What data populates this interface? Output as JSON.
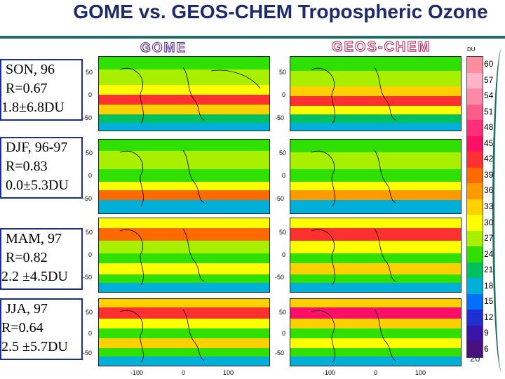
{
  "slide": {
    "title": "GOME vs. GEOS-CHEM Tropospheric Ozone",
    "page_number": "20"
  },
  "panels": {
    "gome_label": "GOME",
    "geos_label": "GEOS-CHEM"
  },
  "seasons": [
    {
      "lines": [
        "SON, 96",
        "R=0.67",
        "1.8±6.8DU"
      ]
    },
    {
      "lines": [
        "DJF, 96-97",
        " R=0.83",
        "0.0±5.3DU"
      ]
    },
    {
      "lines": [
        "MAM, 97",
        "R=0.82",
        "2.2 ±4.5DU"
      ]
    },
    {
      "lines": [
        "JJA, 97",
        "R=0.64",
        "2.5 ±5.7DU"
      ]
    }
  ],
  "axes": {
    "lat_ticks": [
      "50",
      "0",
      "-50"
    ],
    "lon_ticks": [
      "-100",
      "0",
      "100"
    ]
  },
  "colorbar": {
    "unit": "DU",
    "labels": [
      "60",
      "57",
      "54",
      "51",
      "48",
      "45",
      "42",
      "39",
      "36",
      "33",
      "30",
      "27",
      "24",
      "21",
      "18",
      "15",
      "12",
      "9",
      "6"
    ],
    "colors": [
      "#ff8fa0",
      "#ffb3c8",
      "#ff8aa8",
      "#ff5a8c",
      "#ff2e78",
      "#ff1066",
      "#ff3030",
      "#ff6a00",
      "#ff9a00",
      "#ffd000",
      "#ffff00",
      "#a8f000",
      "#30e000",
      "#00c060",
      "#00b0d8",
      "#0070ff",
      "#2030d0",
      "#3a14a8",
      "#4a1080"
    ]
  }
}
